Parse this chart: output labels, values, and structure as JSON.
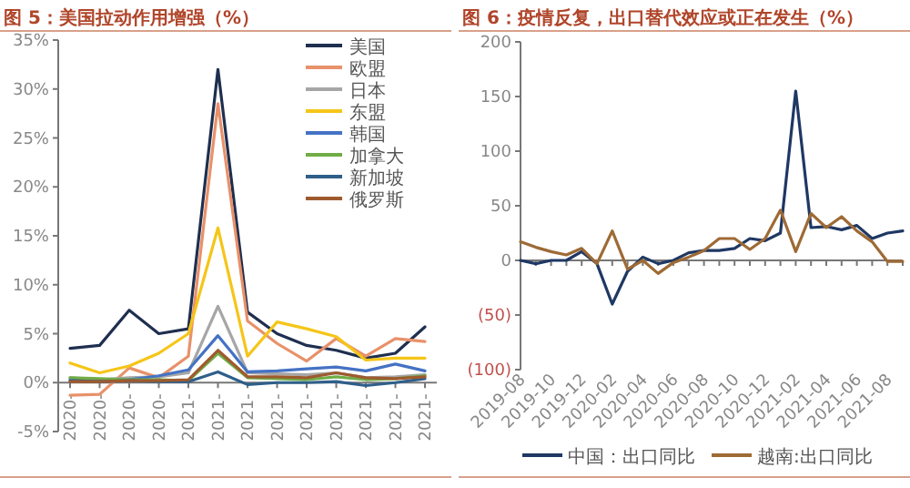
{
  "chart_data": [
    {
      "type": "line",
      "title": "图 5：美国拉动作用增强（%）",
      "categories": [
        "2020-",
        "2020-",
        "2020-",
        "2020-",
        "2021-",
        "2021-",
        "2021-",
        "2021-",
        "2021-",
        "2021-",
        "2021-",
        "2021-",
        "2021-"
      ],
      "ylim": [
        -5,
        35
      ],
      "yticks": [
        {
          "value": -5,
          "label": "-5%"
        },
        {
          "value": 0,
          "label": "0%"
        },
        {
          "value": 5,
          "label": "5%"
        },
        {
          "value": 10,
          "label": "10%"
        },
        {
          "value": 15,
          "label": "15%"
        },
        {
          "value": 20,
          "label": "20%"
        },
        {
          "value": 25,
          "label": "25%"
        },
        {
          "value": 30,
          "label": "30%"
        },
        {
          "value": 35,
          "label": "35%"
        }
      ],
      "legend": "top right",
      "series": [
        {
          "name": "美国",
          "color": "#1f2f4f",
          "values": [
            3.5,
            3.8,
            7.4,
            5.0,
            5.5,
            32,
            7.2,
            5.0,
            3.8,
            3.3,
            2.5,
            3.0,
            5.7
          ]
        },
        {
          "name": "欧盟",
          "color": "#e8916a",
          "values": [
            -1.3,
            -1.2,
            1.5,
            0.5,
            2.7,
            28.5,
            6.3,
            4.0,
            2.2,
            4.5,
            2.7,
            4.5,
            4.2
          ]
        },
        {
          "name": "日本",
          "color": "#a6a6a6",
          "values": [
            0.5,
            0.3,
            0.5,
            0.6,
            1.0,
            7.8,
            1.0,
            0.9,
            0.8,
            1.0,
            0.5,
            0.6,
            0.8
          ]
        },
        {
          "name": "东盟",
          "color": "#f5c518",
          "values": [
            2.0,
            1.0,
            1.7,
            3.0,
            5.0,
            15.8,
            2.7,
            6.2,
            5.5,
            4.7,
            2.3,
            2.5,
            2.5
          ]
        },
        {
          "name": "韩国",
          "color": "#4472c4",
          "values": [
            0.3,
            0.2,
            0.3,
            0.7,
            1.3,
            4.8,
            1.1,
            1.2,
            1.4,
            1.6,
            1.2,
            1.9,
            1.2
          ]
        },
        {
          "name": "加拿大",
          "color": "#70ad47",
          "values": [
            0.5,
            0.4,
            0.3,
            0.3,
            0.2,
            3.0,
            0.5,
            0.4,
            0.3,
            0.6,
            0.3,
            0.4,
            0.7
          ]
        },
        {
          "name": "新加坡",
          "color": "#2e5f8a",
          "values": [
            0.2,
            0.1,
            0.2,
            0.1,
            0.1,
            1.1,
            -0.2,
            0.0,
            0.0,
            0.1,
            -0.3,
            0.0,
            0.4
          ]
        },
        {
          "name": "俄罗斯",
          "color": "#9e5a2e",
          "values": [
            0.1,
            0.1,
            0.2,
            0.2,
            0.3,
            3.3,
            0.6,
            0.6,
            0.5,
            1.0,
            0.5,
            0.4,
            0.6
          ]
        }
      ]
    },
    {
      "type": "line",
      "title": "图 6：疫情反复，出口替代效应或正在发生（%）",
      "categories": [
        "2019-08",
        null,
        "2019-10",
        null,
        "2019-12",
        null,
        "2020-02",
        null,
        "2020-04",
        null,
        "2020-06",
        null,
        "2020-08",
        null,
        "2020-10",
        null,
        "2020-12",
        null,
        "2021-02",
        null,
        "2021-04",
        null,
        "2021-06",
        null,
        "2021-08",
        null
      ],
      "ylim": [
        -100,
        200
      ],
      "yticks": [
        {
          "value": -100,
          "label": "(100)"
        },
        {
          "value": -50,
          "label": "(50)"
        },
        0,
        50,
        100,
        150,
        200
      ],
      "legend": "bottom",
      "series": [
        {
          "name": "中国：出口同比",
          "color": "#1f3864",
          "values": [
            0,
            -3,
            0,
            0,
            8,
            -3,
            -40,
            -10,
            3,
            -3,
            0,
            7,
            9,
            9,
            11,
            20,
            18,
            25,
            155,
            30,
            31,
            28,
            32,
            20,
            25,
            27
          ]
        },
        {
          "name": "越南:出口同比",
          "color": "#9e6a35",
          "values": [
            17,
            12,
            8,
            5,
            11,
            -3,
            27,
            -8,
            0,
            -12,
            -2,
            3,
            9,
            20,
            20,
            10,
            20,
            46,
            8,
            43,
            30,
            40,
            27,
            17,
            -1,
            -1
          ]
        }
      ]
    }
  ]
}
